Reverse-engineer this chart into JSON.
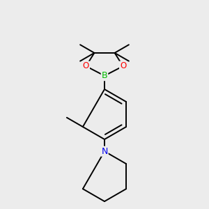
{
  "background_color": "#ececec",
  "bond_color": "#000000",
  "atom_colors": {
    "B": "#00bb00",
    "O": "#ff0000",
    "N": "#0000ee",
    "C": "#000000"
  },
  "line_width": 1.4,
  "fig_width": 3.0,
  "fig_height": 3.0,
  "dpi": 100
}
